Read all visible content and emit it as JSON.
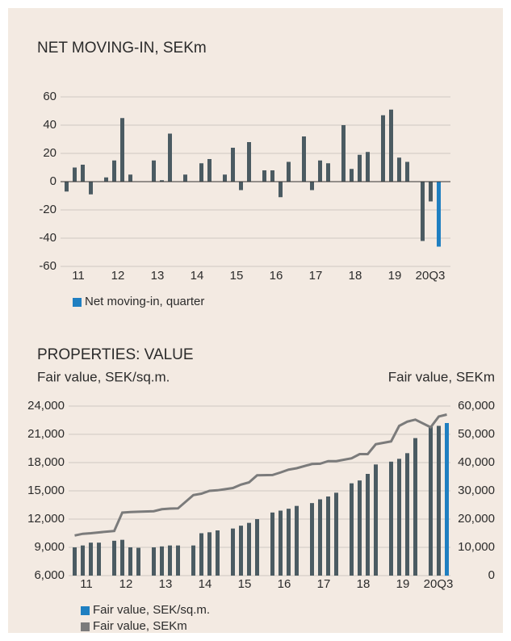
{
  "chart_data": [
    {
      "type": "bar",
      "title": "NET MOVING-IN, SEKm",
      "categories": [
        "11",
        null,
        null,
        null,
        "12",
        null,
        null,
        null,
        "13",
        null,
        null,
        null,
        "14",
        null,
        null,
        null,
        "15",
        null,
        null,
        null,
        "16",
        null,
        null,
        null,
        "17",
        null,
        null,
        null,
        "18",
        null,
        null,
        null,
        "19",
        null,
        null,
        null,
        "20Q3",
        null,
        null
      ],
      "series": [
        {
          "name": "Net moving-in, quarter",
          "color": "#1f7fc1",
          "values": [
            -7,
            10,
            12,
            -9,
            3,
            15,
            45,
            5,
            0,
            15,
            1,
            34,
            5,
            0,
            13,
            16,
            5,
            24,
            -6,
            28,
            8,
            8,
            -11,
            14,
            32,
            -6,
            15,
            13,
            40,
            9,
            19,
            21,
            47,
            51,
            17,
            14,
            -42,
            -14,
            -46
          ],
          "colors": [
            "#4b5b62",
            "#4b5b62",
            "#4b5b62",
            "#4b5b62",
            "#4b5b62",
            "#4b5b62",
            "#4b5b62",
            "#4b5b62",
            "#4b5b62",
            "#4b5b62",
            "#4b5b62",
            "#4b5b62",
            "#4b5b62",
            "#4b5b62",
            "#4b5b62",
            "#4b5b62",
            "#4b5b62",
            "#4b5b62",
            "#4b5b62",
            "#4b5b62",
            "#4b5b62",
            "#4b5b62",
            "#4b5b62",
            "#4b5b62",
            "#4b5b62",
            "#4b5b62",
            "#4b5b62",
            "#4b5b62",
            "#4b5b62",
            "#4b5b62",
            "#4b5b62",
            "#4b5b62",
            "#4b5b62",
            "#4b5b62",
            "#4b5b62",
            "#4b5b62",
            "#4b5b62",
            "#4b5b62",
            "#1f7fc1"
          ]
        }
      ],
      "ylim": [
        -60,
        60
      ],
      "yticks": [
        60,
        40,
        20,
        0,
        -20,
        -40,
        -60
      ],
      "grid": true
    },
    {
      "type": "bar_line",
      "title": "PROPERTIES: VALUE",
      "y_label": "Fair value, SEK/sq.m.",
      "y2_label": "Fair value, SEKm",
      "categories": [
        "11",
        null,
        null,
        null,
        "12",
        null,
        null,
        null,
        "13",
        null,
        null,
        null,
        "14",
        null,
        null,
        null,
        "15",
        null,
        null,
        null,
        "16",
        null,
        null,
        null,
        "17",
        null,
        null,
        null,
        "18",
        null,
        null,
        null,
        "19",
        null,
        null,
        null,
        "20Q3",
        null,
        null
      ],
      "series": [
        {
          "name": "Fair value, SEK/sq.m.",
          "color": "#1f7fc1",
          "values": [
            9000,
            9200,
            9500,
            9500,
            9700,
            9800,
            9000,
            8950,
            9000,
            9100,
            9200,
            9200,
            9200,
            10500,
            10600,
            10800,
            11000,
            11300,
            11600,
            12000,
            12700,
            12900,
            13100,
            13400,
            13700,
            14100,
            14400,
            14800,
            15800,
            16100,
            16800,
            17800,
            18100,
            18400,
            19000,
            20600,
            21900,
            21900,
            22200
          ],
          "colors": [
            "#4b5b62",
            "#4b5b62",
            "#4b5b62",
            "#4b5b62",
            "#4b5b62",
            "#4b5b62",
            "#4b5b62",
            "#4b5b62",
            "#4b5b62",
            "#4b5b62",
            "#4b5b62",
            "#4b5b62",
            "#4b5b62",
            "#4b5b62",
            "#4b5b62",
            "#4b5b62",
            "#4b5b62",
            "#4b5b62",
            "#4b5b62",
            "#4b5b62",
            "#4b5b62",
            "#4b5b62",
            "#4b5b62",
            "#4b5b62",
            "#4b5b62",
            "#4b5b62",
            "#4b5b62",
            "#4b5b62",
            "#4b5b62",
            "#4b5b62",
            "#4b5b62",
            "#4b5b62",
            "#4b5b62",
            "#4b5b62",
            "#4b5b62",
            "#4b5b62",
            "#4b5b62",
            "#4b5b62",
            "#1f7fc1"
          ]
        },
        {
          "name": "Fair value, SEKm",
          "color": "#7b7b7b",
          "axis": "y2",
          "values": [
            14200,
            14800,
            15000,
            15300,
            15800,
            22300,
            22500,
            22600,
            22800,
            23500,
            23700,
            23800,
            28500,
            29000,
            30000,
            30200,
            31000,
            32200,
            33000,
            35500,
            35600,
            36500,
            37500,
            38000,
            39500,
            39600,
            40500,
            40500,
            41500,
            43000,
            43000,
            46500,
            47500,
            53000,
            54500,
            55200,
            52500,
            56300,
            57000
          ]
        }
      ],
      "ylim": [
        6000,
        24000
      ],
      "yticks": [
        {
          "value": 24000,
          "label": "24,000"
        },
        {
          "value": 21000,
          "label": "21,000"
        },
        {
          "value": 18000,
          "label": "18,000"
        },
        {
          "value": 15000,
          "label": "15,000"
        },
        {
          "value": 12000,
          "label": "12,000"
        },
        {
          "value": 9000,
          "label": "9,000"
        },
        {
          "value": 6000,
          "label": "6,000"
        }
      ],
      "y2lim": [
        0,
        60000
      ],
      "y2ticks": [
        {
          "value": 60000,
          "label": "60,000"
        },
        {
          "value": 50000,
          "label": "50,000"
        },
        {
          "value": 40000,
          "label": "40,000"
        },
        {
          "value": 30000,
          "label": "30,000"
        },
        {
          "value": 20000,
          "label": "20,000"
        },
        {
          "value": 10000,
          "label": "10,000"
        },
        0
      ],
      "grid": true
    }
  ]
}
